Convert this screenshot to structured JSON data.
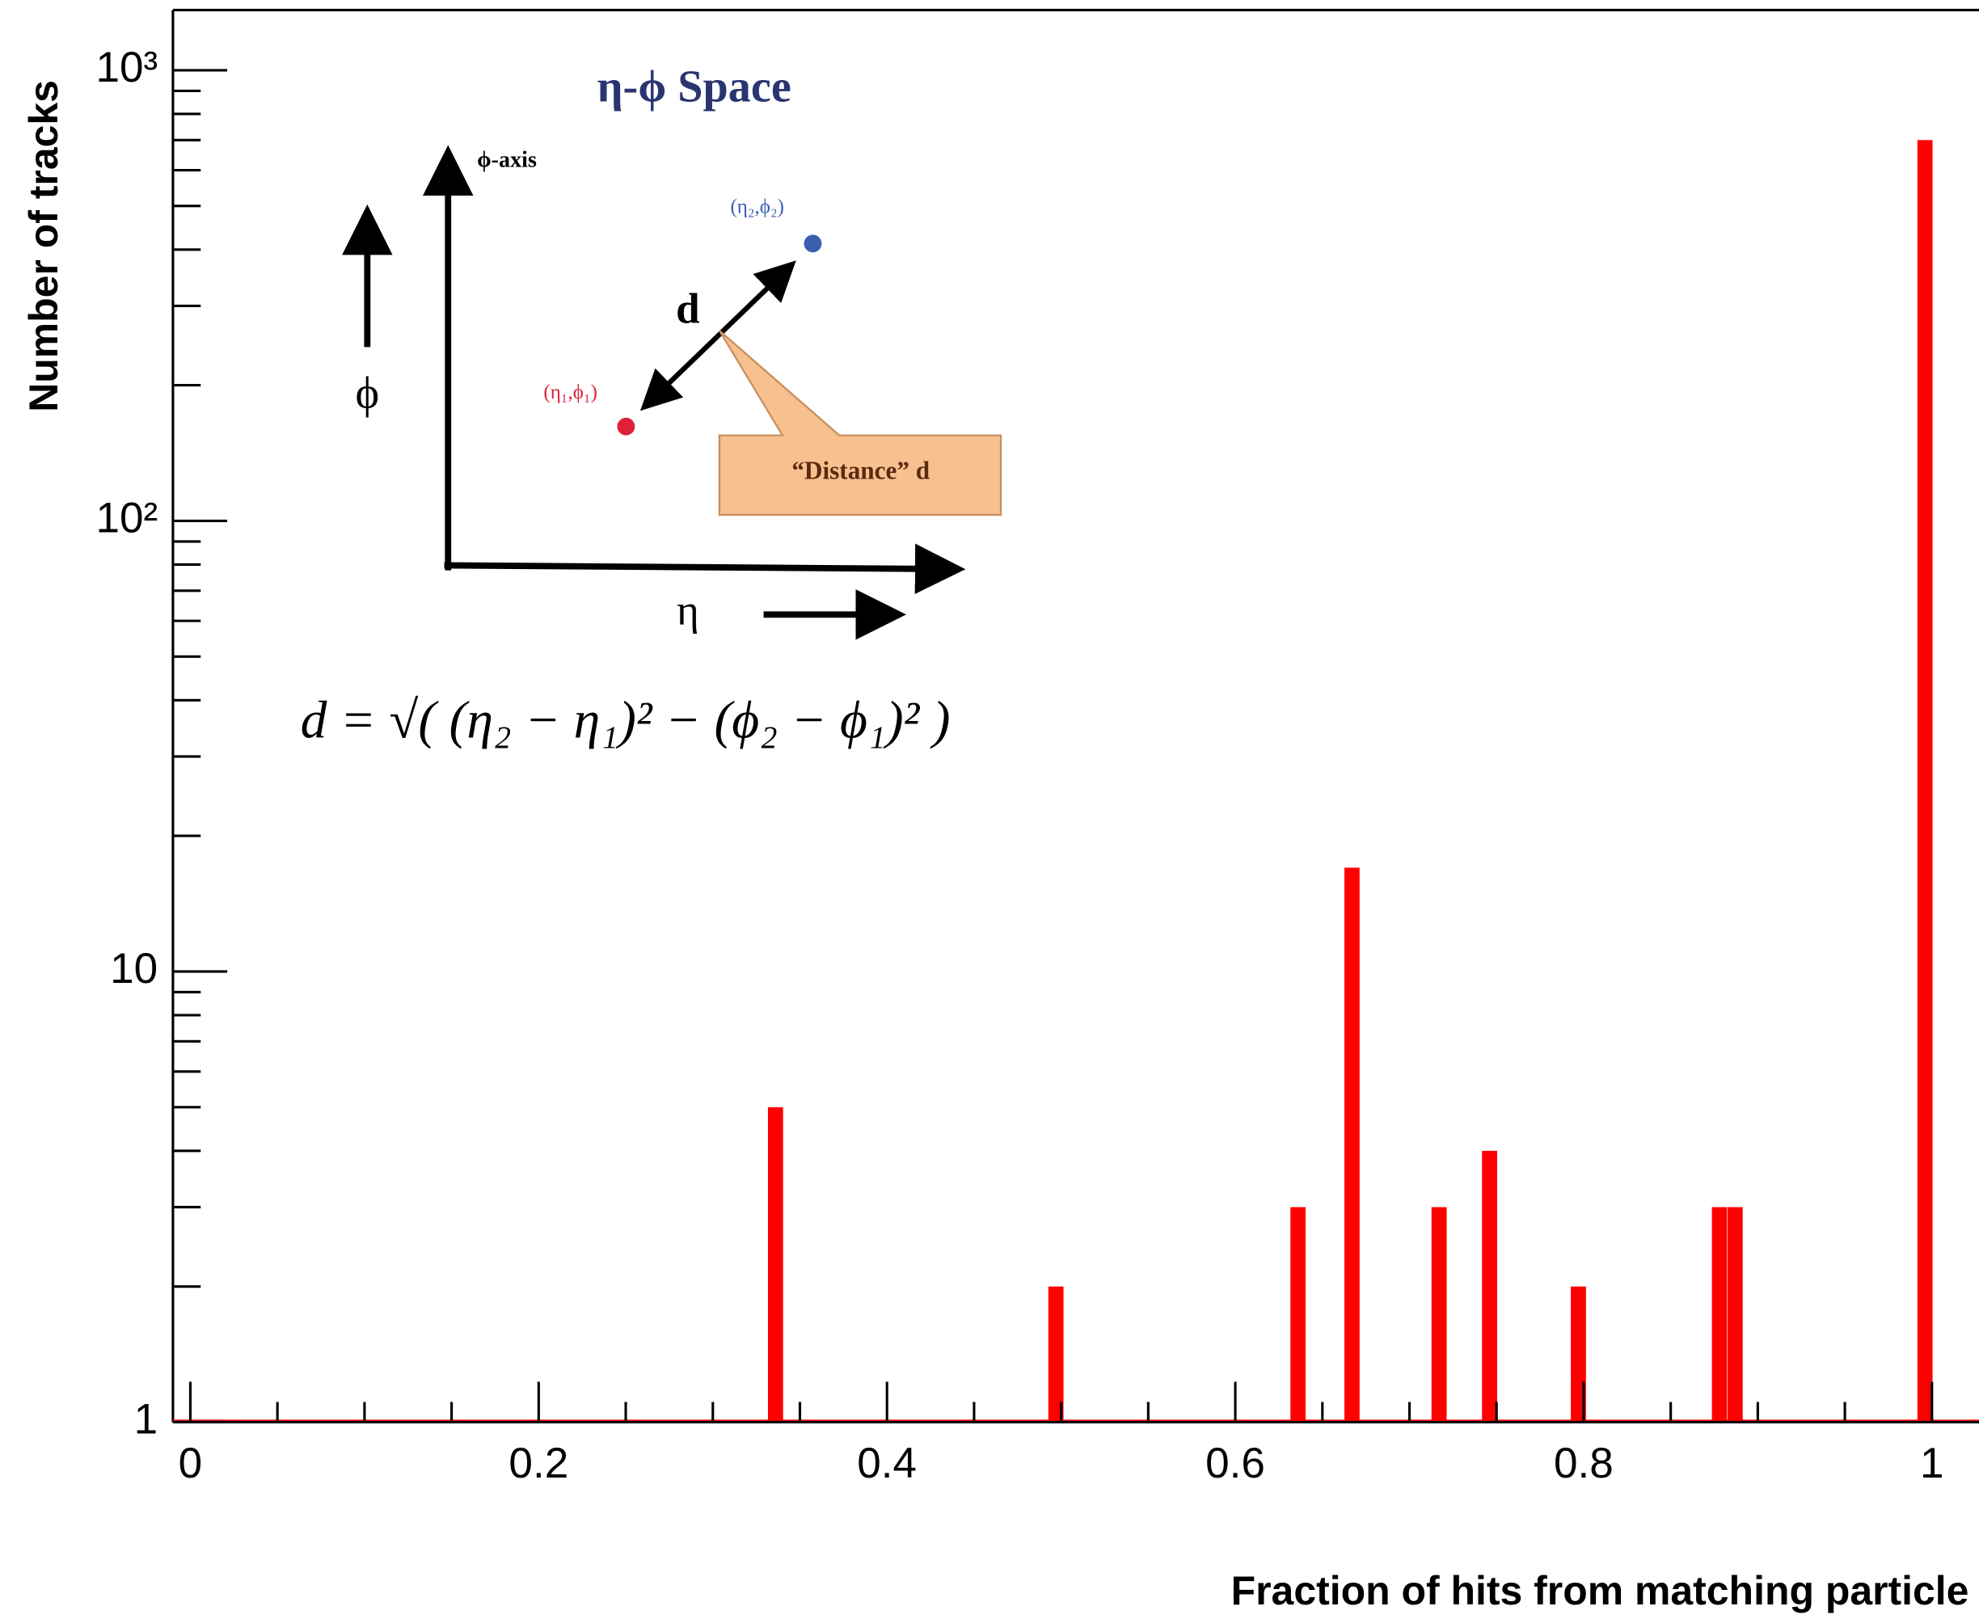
{
  "chart_data": {
    "type": "bar",
    "xlabel": "Fraction of hits from matching particle",
    "ylabel": "Number of tracks",
    "x": [
      0.336,
      0.497,
      0.636,
      0.667,
      0.717,
      0.746,
      0.797,
      0.878,
      0.887,
      0.996
    ],
    "values": [
      5,
      2,
      3,
      17,
      3,
      4,
      2,
      3,
      3,
      700
    ],
    "color": "#ff0000",
    "xlim": [
      -0.01,
      1.027
    ],
    "xticks": [
      0,
      0.2,
      0.4,
      0.6,
      0.8,
      1
    ],
    "ylim": [
      1,
      1360
    ],
    "yticks": [
      1,
      10,
      {
        "value": 100,
        "label": "10²"
      },
      {
        "value": 1000,
        "label": "10³"
      }
    ],
    "ylog": true,
    "inset": {
      "title": "η-ϕ Space",
      "phi_axis": "ϕ-axis",
      "point2": "(η₂,ϕ₂)",
      "point1": "(η₁,ϕ₁)",
      "d": "d",
      "callout": "“Distance” d",
      "phi": "ϕ",
      "eta": "η",
      "formula": "d = √( (η₂ − η₁)² − (ϕ₂ − ϕ₁)² )"
    }
  }
}
